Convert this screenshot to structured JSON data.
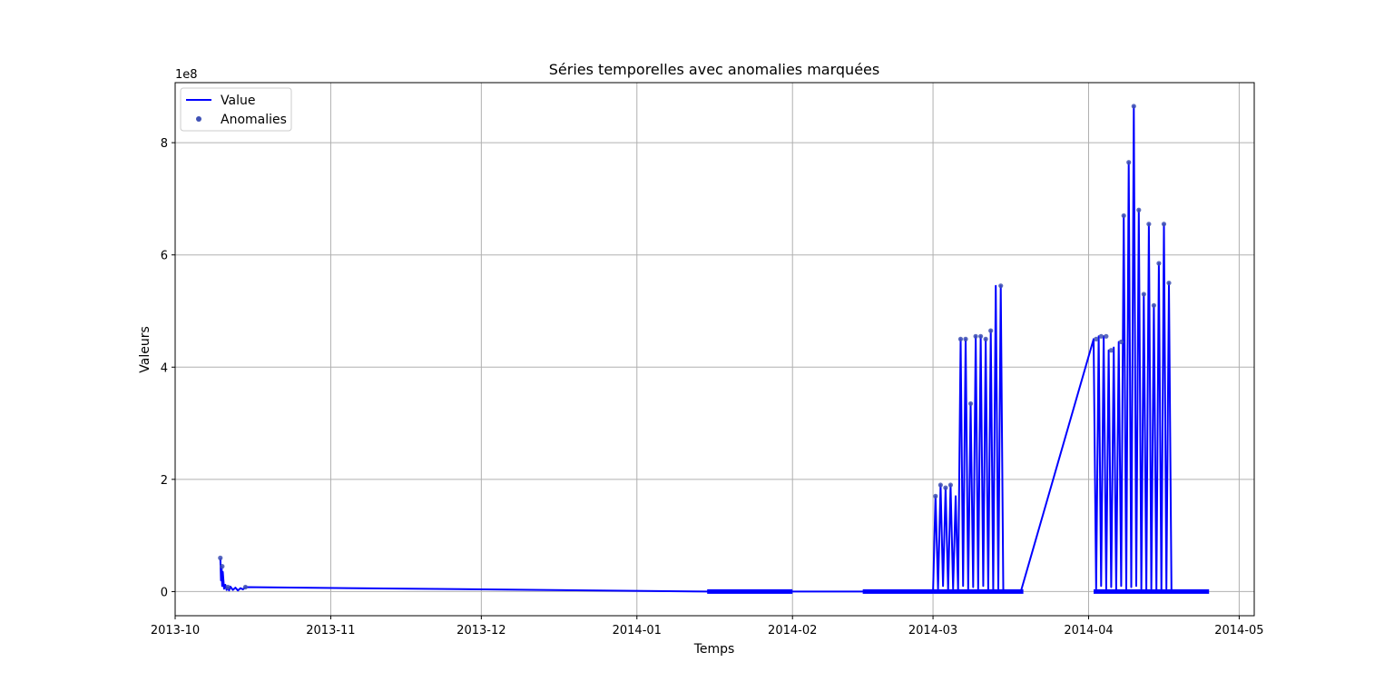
{
  "chart_data": {
    "type": "line",
    "title": "Séries temporelles avec anomalies marquées",
    "xlabel": "Temps",
    "ylabel": "Valeurs",
    "y_offset_text": "1e8",
    "y_scale": 100000000,
    "xlim": [
      "2013-10-01",
      "2014-05-04"
    ],
    "ylim": [
      -43000000,
      907000000
    ],
    "x_ticks": [
      "2013-10-01",
      "2013-11-01",
      "2013-12-01",
      "2014-01-01",
      "2014-02-01",
      "2014-03-01",
      "2014-04-01",
      "2014-05-01"
    ],
    "x_tick_labels": [
      "2013-10",
      "2013-11",
      "2013-12",
      "2014-01",
      "2014-02",
      "2014-03",
      "2014-04",
      "2014-05"
    ],
    "y_ticks": [
      0,
      200000000,
      400000000,
      600000000,
      800000000
    ],
    "y_tick_labels": [
      "0",
      "2",
      "4",
      "6",
      "8"
    ],
    "grid": true,
    "legend_position": "top-left",
    "colors": {
      "value": "#0000ff",
      "anomalies": "#3f51b5",
      "anomaly_red": "#d32f2f",
      "grid": "#b0b0b0"
    },
    "series": [
      {
        "name": "Value",
        "style": "line",
        "x": [
          "2013-10-10T00:00",
          "2013-10-10T03:00",
          "2013-10-10T06:00",
          "2013-10-10T09:00",
          "2013-10-10T12:00",
          "2013-10-10T18:00",
          "2013-10-11T00:00",
          "2013-10-11T06:00",
          "2013-10-11T12:00",
          "2013-10-11T18:00",
          "2013-10-12T00:00",
          "2013-10-12T12:00",
          "2013-10-13T00:00",
          "2013-10-13T12:00",
          "2013-10-14T00:00",
          "2013-10-14T12:00",
          "2013-10-15T00:00",
          "2014-01-15T00:00",
          "2014-02-01T00:00",
          "2014-02-15T00:00",
          "2014-03-01T00:00",
          "2014-03-01T12:00",
          "2014-03-02T00:00",
          "2014-03-02T12:00",
          "2014-03-03T00:00",
          "2014-03-03T12:00",
          "2014-03-04T00:00",
          "2014-03-04T12:00",
          "2014-03-05T00:00",
          "2014-03-05T12:00",
          "2014-03-06T00:00",
          "2014-03-06T12:00",
          "2014-03-07T00:00",
          "2014-03-07T12:00",
          "2014-03-08T00:00",
          "2014-03-08T12:00",
          "2014-03-09T00:00",
          "2014-03-09T12:00",
          "2014-03-10T00:00",
          "2014-03-10T12:00",
          "2014-03-11T00:00",
          "2014-03-11T12:00",
          "2014-03-12T00:00",
          "2014-03-12T12:00",
          "2014-03-13T00:00",
          "2014-03-13T12:00",
          "2014-03-14T00:00",
          "2014-03-14T12:00",
          "2014-03-15T00:00",
          "2014-03-15T12:00",
          "2014-03-16T00:00",
          "2014-03-16T12:00",
          "2014-03-17T00:00",
          "2014-03-17T12:00",
          "2014-03-18T00:00",
          "2014-03-18T12:00",
          "2014-04-02T00:00",
          "2014-04-02T12:00",
          "2014-04-03T00:00",
          "2014-04-03T12:00",
          "2014-04-04T00:00",
          "2014-04-04T12:00",
          "2014-04-05T00:00",
          "2014-04-05T12:00",
          "2014-04-06T00:00",
          "2014-04-06T12:00",
          "2014-04-07T00:00",
          "2014-04-07T12:00",
          "2014-04-08T00:00",
          "2014-04-08T12:00",
          "2014-04-09T00:00",
          "2014-04-09T12:00",
          "2014-04-10T00:00",
          "2014-04-10T12:00",
          "2014-04-11T00:00",
          "2014-04-11T12:00",
          "2014-04-12T00:00",
          "2014-04-12T12:00",
          "2014-04-13T00:00",
          "2014-04-13T12:00",
          "2014-04-14T00:00",
          "2014-04-14T12:00",
          "2014-04-15T00:00",
          "2014-04-15T12:00",
          "2014-04-16T00:00",
          "2014-04-16T12:00",
          "2014-04-17T00:00",
          "2014-04-17T12:00",
          "2014-04-18T00:00",
          "2014-04-19T00:00",
          "2014-04-24T12:00"
        ],
        "y": [
          60000000,
          20000000,
          45000000,
          10000000,
          35000000,
          5000000,
          12000000,
          3000000,
          8000000,
          2000000,
          9000000,
          3000000,
          7000000,
          2000000,
          6000000,
          4000000,
          8000000,
          0,
          0,
          0,
          0,
          170000000,
          5000000,
          190000000,
          10000000,
          185000000,
          3000000,
          190000000,
          5000000,
          170000000,
          2000000,
          450000000,
          10000000,
          450000000,
          5000000,
          335000000,
          8000000,
          455000000,
          5000000,
          455000000,
          10000000,
          450000000,
          2000000,
          465000000,
          3000000,
          545000000,
          5000000,
          545000000,
          1000000,
          0,
          0,
          0,
          0,
          0,
          0,
          0,
          450000000,
          5000000,
          455000000,
          10000000,
          455000000,
          5000000,
          430000000,
          8000000,
          435000000,
          3000000,
          445000000,
          10000000,
          670000000,
          5000000,
          765000000,
          8000000,
          865000000,
          10000000,
          680000000,
          5000000,
          530000000,
          3000000,
          655000000,
          5000000,
          510000000,
          2000000,
          585000000,
          3000000,
          655000000,
          5000000,
          550000000,
          1000000,
          0,
          0,
          0
        ]
      },
      {
        "name": "Anomalies",
        "style": "scatter",
        "x": [
          "2013-10-10T00:00",
          "2013-10-10T09:00",
          "2013-10-11T12:00",
          "2013-10-15T00:00",
          "2014-03-01T12:00",
          "2014-03-02T12:00",
          "2014-03-03T12:00",
          "2014-03-04T12:00",
          "2014-03-06T12:00",
          "2014-03-07T12:00",
          "2014-03-08T12:00",
          "2014-03-09T12:00",
          "2014-03-10T12:00",
          "2014-03-11T12:00",
          "2014-03-12T12:00",
          "2014-03-14T12:00",
          "2014-04-02T12:00",
          "2014-04-03T12:00",
          "2014-04-04T12:00",
          "2014-04-05T12:00",
          "2014-04-07T12:00",
          "2014-04-08T00:00",
          "2014-04-09T00:00",
          "2014-04-10T00:00",
          "2014-04-11T00:00",
          "2014-04-12T00:00",
          "2014-04-13T00:00",
          "2014-04-14T00:00",
          "2014-04-15T00:00",
          "2014-04-16T00:00",
          "2014-04-17T00:00"
        ],
        "y": [
          60000000,
          45000000,
          8000000,
          8000000,
          170000000,
          190000000,
          185000000,
          190000000,
          450000000,
          450000000,
          335000000,
          455000000,
          455000000,
          450000000,
          465000000,
          545000000,
          450000000,
          455000000,
          455000000,
          430000000,
          445000000,
          670000000,
          765000000,
          865000000,
          680000000,
          530000000,
          655000000,
          510000000,
          585000000,
          655000000,
          550000000
        ]
      }
    ],
    "legend": [
      {
        "label": "Value",
        "marker": "line"
      },
      {
        "label": "Anomalies",
        "marker": "dot"
      }
    ]
  }
}
